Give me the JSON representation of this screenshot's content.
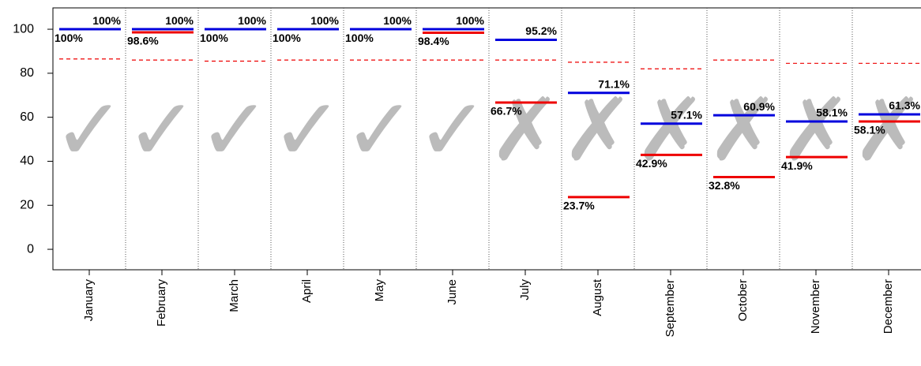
{
  "chart_data": {
    "type": "segment",
    "categories": [
      "January",
      "February",
      "March",
      "April",
      "May",
      "June",
      "July",
      "August",
      "September",
      "October",
      "November",
      "December"
    ],
    "series": [
      {
        "color": "#0000dd",
        "style": "solid",
        "label_side": "above",
        "values": [
          100,
          100,
          100,
          100,
          100,
          100,
          95.2,
          71.1,
          57.1,
          60.9,
          58.1,
          61.3
        ],
        "value_labels": [
          "100%",
          "100%",
          "100%",
          "100%",
          "100%",
          "100%",
          "95.2%",
          "71.1%",
          "57.1%",
          "60.9%",
          "58.1%",
          "61.3%"
        ]
      },
      {
        "color": "#ee0000",
        "style": "solid",
        "label_side": "below",
        "values": [
          100,
          98.6,
          100,
          100,
          100,
          98.4,
          66.7,
          23.7,
          42.9,
          32.8,
          41.9,
          58.1
        ],
        "value_labels": [
          "100%",
          "98.6%",
          "100%",
          "100%",
          "100%",
          "98.4%",
          "66.7%",
          "23.7%",
          "42.9%",
          "32.8%",
          "41.9%",
          "58.1%"
        ]
      },
      {
        "color": "#ee0000",
        "style": "dashed",
        "values": [
          86.5,
          86,
          85.5,
          86,
          86,
          86,
          86,
          85,
          82,
          86,
          84.5,
          84.5
        ]
      }
    ],
    "icons": [
      "✓",
      "✓",
      "✓",
      "✓",
      "✓",
      "✓",
      "✗",
      "✗",
      "✗",
      "✗",
      "✗",
      "✗"
    ],
    "ylim": [
      -9.3,
      109.7
    ],
    "yticks": [
      0,
      20,
      40,
      60,
      80,
      100
    ]
  }
}
